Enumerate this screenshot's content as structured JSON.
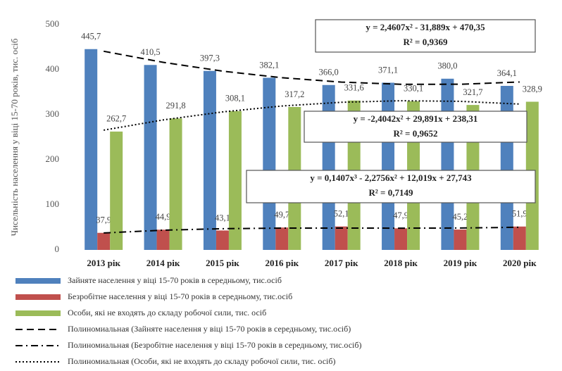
{
  "chart_data": {
    "type": "bar",
    "y_label": "Чисельність населення у віці 15-70 років, тис. осіб",
    "categories": [
      "2013 рік",
      "2014 рік",
      "2015 рік",
      "2016 рік",
      "2017 рік",
      "2018 рік",
      "2019 рік",
      "2020 рік"
    ],
    "ylim": [
      0,
      500
    ],
    "yticks": [
      0,
      100,
      200,
      300,
      400,
      500
    ],
    "grid": false,
    "series": [
      {
        "name": "Зайняте населення у віці 15-70 років в середньому, тис.осіб",
        "color": "#4f81bd",
        "values": [
          445.7,
          410.5,
          397.3,
          382.1,
          366.0,
          371.1,
          380.0,
          364.1
        ],
        "value_labels": [
          "445,7",
          "410,5",
          "397,3",
          "382,1",
          "366,0",
          "371,1",
          "380,0",
          "364,1"
        ]
      },
      {
        "name": "Безробітне населення у віці 15-70 років в середньому, тис.осіб",
        "color": "#c0504d",
        "values": [
          37.9,
          44.9,
          43.1,
          49.7,
          52.1,
          47.9,
          45.2,
          51.9
        ],
        "value_labels": [
          "37,9",
          "44,9",
          "43,1",
          "49,7",
          "52,1",
          "47,9",
          "45,2",
          "51,9"
        ]
      },
      {
        "name": "Особи, які не входять до складу робочої сили, тис. осіб",
        "color": "#9bbb59",
        "values": [
          262.7,
          291.8,
          308.1,
          317.2,
          331.6,
          330.1,
          321.7,
          328.9
        ],
        "value_labels": [
          "262,7",
          "291,8",
          "308,1",
          "317,2",
          "331,6",
          "330,1",
          "321,7",
          "328,9"
        ]
      },
      {
        "name": "Полиномиальная (Зайняте населення у віці 15-70 років в середньому, тис.осіб)",
        "type": "line",
        "color": "#000000",
        "dash": "dash",
        "values": [
          440.9,
          416.4,
          396.8,
          382.2,
          372.5,
          367.6,
          367.7,
          372.7
        ]
      },
      {
        "name": "Полиномиальная (Безробітне населення у віці 15-70 років в середньому, тис.осіб)",
        "type": "line",
        "color": "#000000",
        "dash": "dashdot",
        "values": [
          37.6,
          43.8,
          47.1,
          48.4,
          48.5,
          48.3,
          48.6,
          50.3
        ]
      },
      {
        "name": "Полиномиальная (Особи, які не входять до складу робочої сили, тис. осіб)",
        "type": "line",
        "color": "#000000",
        "dash": "dot",
        "values": [
          265.8,
          288.5,
          306.3,
          319.4,
          327.7,
          331.1,
          329.8,
          323.7
        ]
      }
    ],
    "annotations": [
      {
        "lines": [
          "y = 2,4607x² - 31,889x + 470,35",
          "R² = 0,9369"
        ]
      },
      {
        "lines": [
          "y = -2,4042x² + 29,891x + 238,31",
          "R² = 0,9652"
        ]
      },
      {
        "lines": [
          "y = 0,1407x³ - 2,2756x² + 12,019x + 27,743",
          "R² = 0,7149"
        ]
      }
    ]
  }
}
